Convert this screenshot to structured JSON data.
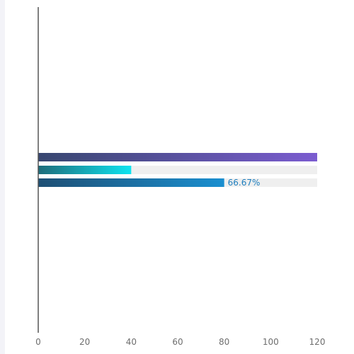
{
  "chart_data": {
    "type": "bar",
    "orientation": "horizontal",
    "xlim": [
      0,
      120
    ],
    "x_ticks": [
      "0",
      "20",
      "40",
      "60",
      "80",
      "100",
      "120"
    ],
    "background_track": true,
    "track_max": 120,
    "series": [
      {
        "value": 120,
        "gradient": [
          "#37466f",
          "#7b5cd0"
        ],
        "label": ""
      },
      {
        "value": 40,
        "gradient": [
          "#1e6c7a",
          "#0ee4f0"
        ],
        "label": ""
      },
      {
        "value": 80,
        "gradient": [
          "#1e4f74",
          "#1a8fd0"
        ],
        "label": "66.67%",
        "label_color": "#1f7fbf"
      }
    ],
    "track_color": "#efefef",
    "axis_color": "#555555",
    "grid": false
  }
}
